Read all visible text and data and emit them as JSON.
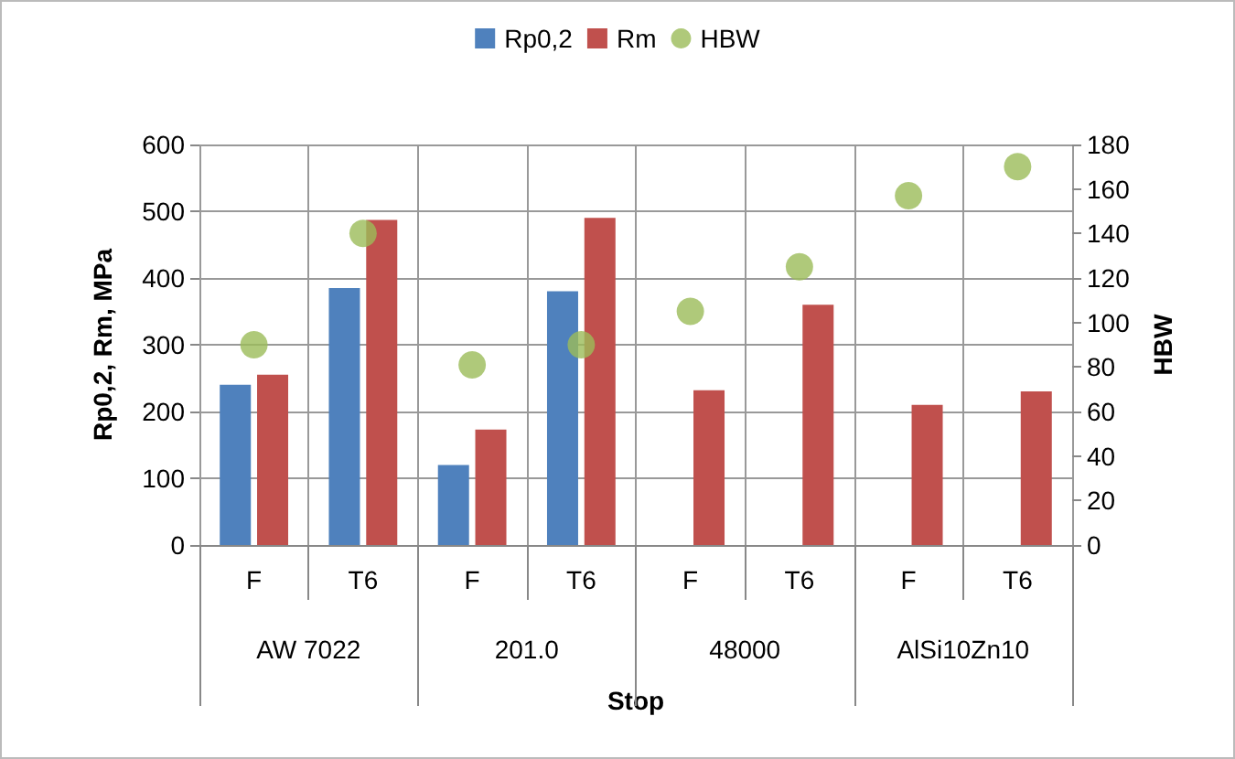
{
  "chart_data": {
    "type": "bar",
    "xlabel": "Stop",
    "ylabel": "Rp0,2, Rm, MPa",
    "y2label": "HBW",
    "categories": [
      "F",
      "T6",
      "F",
      "T6",
      "F",
      "T6",
      "F",
      "T6"
    ],
    "annotations": [
      "AW 7022",
      "201.0",
      "48000",
      "AlSi10Zn10"
    ],
    "series": [
      {
        "name": "Rp0,2",
        "color": "#4f81bd",
        "values": [
          240,
          385,
          120,
          380,
          null,
          null,
          null,
          null
        ]
      },
      {
        "name": "Rm",
        "color": "#c0504d",
        "values": [
          255,
          487,
          173,
          490,
          232,
          360,
          210,
          230
        ]
      },
      {
        "name": "HBW",
        "type": "scatter",
        "axis": "y2",
        "color": "#9bbb59",
        "values": [
          90,
          140,
          81,
          90,
          105,
          125,
          157,
          170
        ]
      }
    ],
    "ylim": [
      0,
      600
    ],
    "yticks": [
      0,
      100,
      200,
      300,
      400,
      500,
      600
    ],
    "y2lim": [
      0,
      180
    ],
    "y2ticks": [
      0,
      20,
      40,
      60,
      80,
      100,
      120,
      140,
      160,
      180
    ],
    "grid": true,
    "legend": "top",
    "marker": "circle"
  }
}
